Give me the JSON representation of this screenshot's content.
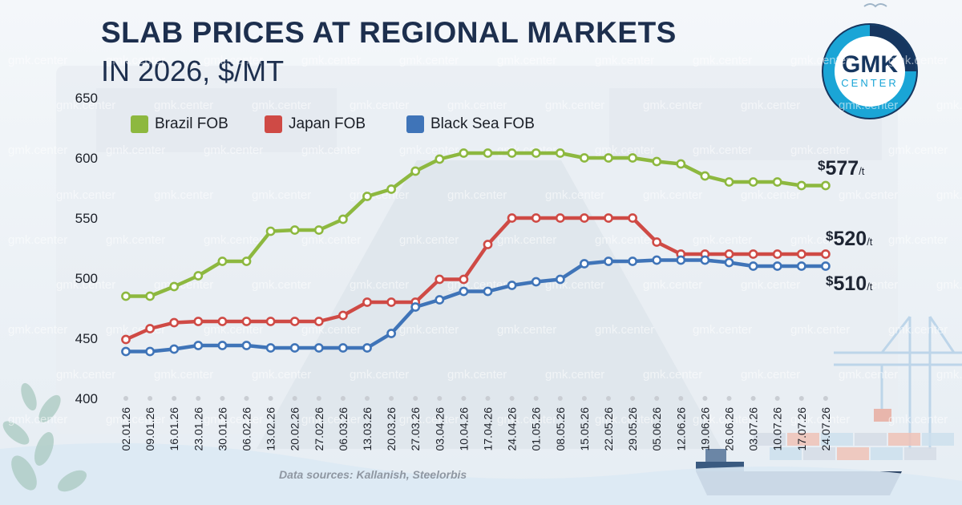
{
  "header": {
    "title_line1": "SLAB PRICES AT REGIONAL MARKETS",
    "title_line2": "IN 2026, $/MT"
  },
  "logo": {
    "line1": "GMK",
    "line2": "CENTER"
  },
  "source": "Data sources: Kallanish, Steelorbis",
  "watermark": "gmk.center",
  "chart_data": {
    "type": "line",
    "title": "SLAB PRICES AT REGIONAL MARKETS IN 2026, $/MT",
    "ylim": [
      400,
      650
    ],
    "y_ticks": [
      "400",
      "450",
      "500",
      "550",
      "600",
      "650"
    ],
    "grid": false,
    "legend_position": "top-left",
    "x": [
      "02.01.26",
      "09.01.26",
      "16.01.26",
      "23.01.26",
      "30.01.26",
      "06.02.26",
      "13.02.26",
      "20.02.26",
      "27.02.26",
      "06.03.26",
      "13.03.26",
      "20.03.26",
      "27.03.26",
      "03.04.26",
      "10.04.26",
      "17.04.26",
      "24.04.26",
      "01.05.26",
      "08.05.26",
      "15.05.26",
      "22.05.26",
      "29.05.26",
      "05.06.26",
      "12.06.26",
      "19.06.26",
      "26.06.26",
      "03.07.26",
      "10.07.26",
      "17.07.26",
      "24.07.26"
    ],
    "series": [
      {
        "name": "Brazil FOB",
        "color": "#8db83f",
        "values": [
          485,
          485,
          493,
          502,
          514,
          514,
          539,
          540,
          540,
          549,
          568,
          574,
          589,
          599,
          604,
          604,
          604,
          604,
          604,
          600,
          600,
          600,
          597,
          595,
          585,
          580,
          580,
          580,
          577,
          577
        ]
      },
      {
        "name": "Japan FOB",
        "color": "#cf4a45",
        "values": [
          449,
          458,
          463,
          464,
          464,
          464,
          464,
          464,
          464,
          469,
          480,
          480,
          480,
          499,
          499,
          528,
          550,
          550,
          550,
          550,
          550,
          550,
          530,
          520,
          520,
          520,
          520,
          520,
          520,
          520
        ]
      },
      {
        "name": "Black Sea FOB",
        "color": "#3f74b8",
        "values": [
          439,
          439,
          441,
          444,
          444,
          444,
          442,
          442,
          442,
          442,
          442,
          454,
          476,
          482,
          489,
          489,
          494,
          497,
          499,
          512,
          514,
          514,
          515,
          515,
          515,
          513,
          510,
          510,
          510,
          510
        ]
      }
    ],
    "end_labels": [
      {
        "currency": "$",
        "value": "577",
        "unit": "/t"
      },
      {
        "currency": "$",
        "value": "520",
        "unit": "/t"
      },
      {
        "currency": "$",
        "value": "510",
        "unit": "/t"
      }
    ]
  }
}
